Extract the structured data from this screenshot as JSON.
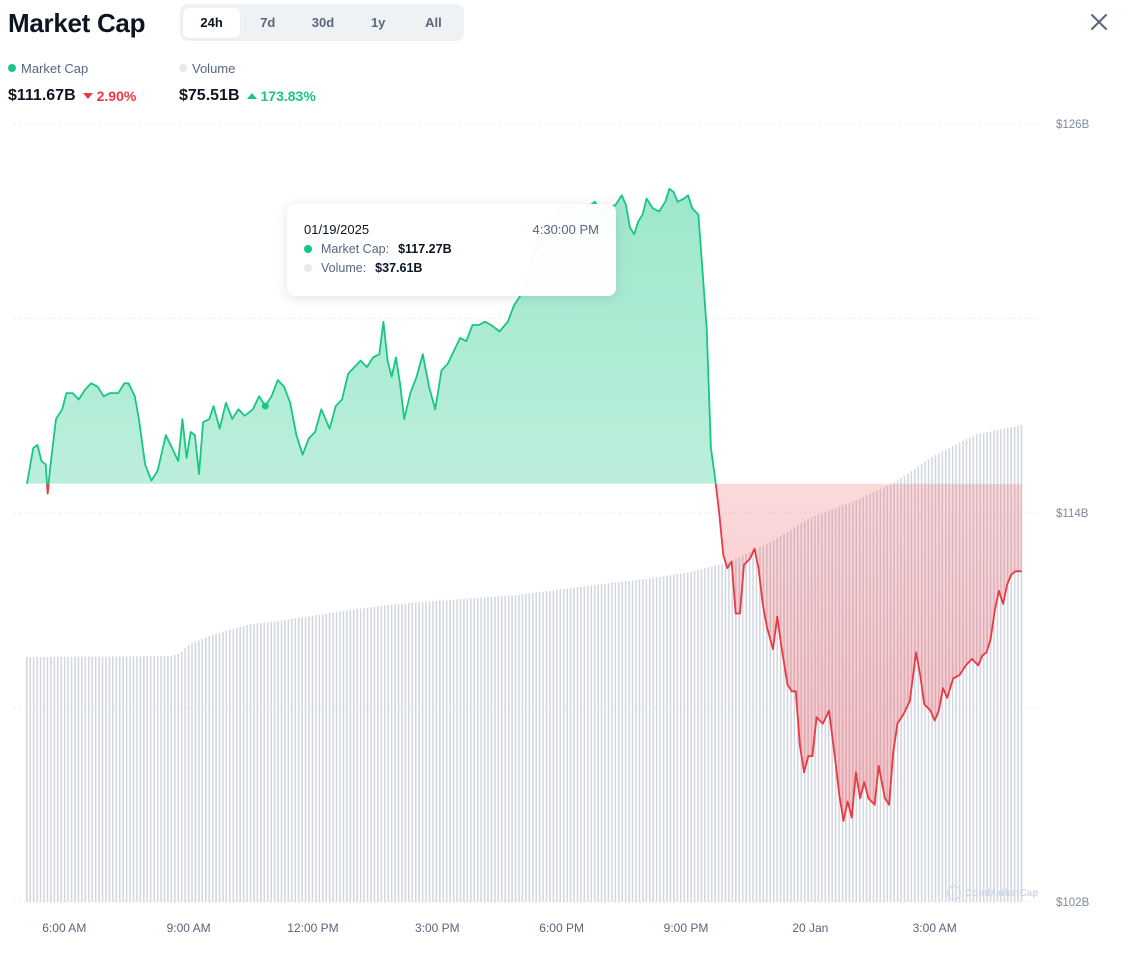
{
  "header": {
    "title": "Market Cap"
  },
  "tabs": [
    {
      "label": "24h",
      "active": true
    },
    {
      "label": "7d",
      "active": false
    },
    {
      "label": "30d",
      "active": false
    },
    {
      "label": "1y",
      "active": false
    },
    {
      "label": "All",
      "active": false
    }
  ],
  "legend": {
    "market_cap": {
      "label": "Market Cap",
      "value": "$111.67B",
      "change": "2.90%",
      "direction": "down",
      "color": "#16c784"
    },
    "volume": {
      "label": "Volume",
      "value": "$75.51B",
      "change": "173.83%",
      "direction": "up",
      "color": "#e6e9ee"
    }
  },
  "tooltip": {
    "date": "01/19/2025",
    "time": "4:30:00 PM",
    "market_cap_label": "Market Cap:",
    "market_cap_value": "$117.27B",
    "volume_label": "Volume:",
    "volume_value": "$37.61B"
  },
  "watermark": "CoinMarketCap",
  "colors": {
    "up": "#16c784",
    "down": "#ea3943",
    "volume": "#d3d8e0"
  },
  "chart_data": {
    "type": "area",
    "title": "Market Cap",
    "baseline": 114.9,
    "y_ticks": [
      {
        "value": 126,
        "label": "$126B"
      },
      {
        "value": 114,
        "label": "$114B"
      },
      {
        "value": 102,
        "label": "$102B"
      }
    ],
    "ylim": [
      102,
      126
    ],
    "x_ticks": [
      {
        "hour": 6,
        "label": "6:00 AM"
      },
      {
        "hour": 9,
        "label": "9:00 AM"
      },
      {
        "hour": 12,
        "label": "12:00 PM"
      },
      {
        "hour": 15,
        "label": "3:00 PM"
      },
      {
        "hour": 18,
        "label": "6:00 PM"
      },
      {
        "hour": 21,
        "label": "9:00 PM"
      },
      {
        "hour": 24,
        "label": "20 Jan"
      },
      {
        "hour": 27,
        "label": "3:00 AM"
      }
    ],
    "xlim": [
      5.1,
      29.3
    ],
    "series": [
      {
        "name": "Market Cap",
        "points": [
          [
            5.1,
            114.9
          ],
          [
            5.25,
            116.0
          ],
          [
            5.35,
            116.1
          ],
          [
            5.45,
            115.6
          ],
          [
            5.55,
            115.5
          ],
          [
            5.6,
            114.6
          ],
          [
            5.65,
            115.3
          ],
          [
            5.8,
            116.9
          ],
          [
            5.95,
            117.2
          ],
          [
            6.05,
            117.7
          ],
          [
            6.2,
            117.7
          ],
          [
            6.35,
            117.5
          ],
          [
            6.5,
            117.8
          ],
          [
            6.65,
            118.0
          ],
          [
            6.8,
            117.9
          ],
          [
            6.95,
            117.6
          ],
          [
            7.1,
            117.7
          ],
          [
            7.3,
            117.7
          ],
          [
            7.45,
            118.0
          ],
          [
            7.55,
            118.0
          ],
          [
            7.7,
            117.6
          ],
          [
            7.8,
            116.9
          ],
          [
            7.95,
            115.5
          ],
          [
            8.1,
            115.0
          ],
          [
            8.25,
            115.3
          ],
          [
            8.45,
            116.4
          ],
          [
            8.6,
            116.0
          ],
          [
            8.75,
            115.6
          ],
          [
            8.85,
            116.9
          ],
          [
            8.95,
            115.7
          ],
          [
            9.05,
            116.5
          ],
          [
            9.15,
            116.4
          ],
          [
            9.25,
            115.2
          ],
          [
            9.35,
            116.8
          ],
          [
            9.5,
            116.9
          ],
          [
            9.6,
            117.3
          ],
          [
            9.75,
            116.6
          ],
          [
            9.9,
            117.4
          ],
          [
            10.05,
            116.9
          ],
          [
            10.2,
            117.2
          ],
          [
            10.35,
            117.0
          ],
          [
            10.55,
            117.2
          ],
          [
            10.7,
            117.6
          ],
          [
            10.85,
            117.3
          ],
          [
            11.0,
            117.6
          ],
          [
            11.15,
            118.1
          ],
          [
            11.3,
            117.9
          ],
          [
            11.45,
            117.4
          ],
          [
            11.6,
            116.4
          ],
          [
            11.75,
            115.8
          ],
          [
            11.9,
            116.3
          ],
          [
            12.05,
            116.5
          ],
          [
            12.2,
            117.2
          ],
          [
            12.4,
            116.6
          ],
          [
            12.55,
            117.3
          ],
          [
            12.7,
            117.5
          ],
          [
            12.85,
            118.3
          ],
          [
            13.0,
            118.5
          ],
          [
            13.15,
            118.7
          ],
          [
            13.3,
            118.5
          ],
          [
            13.45,
            118.8
          ],
          [
            13.6,
            118.9
          ],
          [
            13.7,
            119.9
          ],
          [
            13.8,
            118.7
          ],
          [
            13.9,
            118.2
          ],
          [
            14.0,
            118.8
          ],
          [
            14.1,
            118.0
          ],
          [
            14.2,
            116.9
          ],
          [
            14.35,
            117.7
          ],
          [
            14.5,
            118.2
          ],
          [
            14.65,
            118.9
          ],
          [
            14.8,
            117.9
          ],
          [
            14.95,
            117.2
          ],
          [
            15.1,
            118.4
          ],
          [
            15.25,
            118.6
          ],
          [
            15.4,
            119.0
          ],
          [
            15.55,
            119.4
          ],
          [
            15.7,
            119.3
          ],
          [
            15.85,
            119.8
          ],
          [
            16.0,
            119.8
          ],
          [
            16.15,
            119.9
          ],
          [
            16.3,
            119.8
          ],
          [
            16.5,
            119.6
          ],
          [
            16.7,
            119.9
          ],
          [
            16.85,
            120.4
          ],
          [
            17.0,
            120.7
          ],
          [
            17.15,
            121.1
          ],
          [
            17.3,
            121.9
          ],
          [
            17.5,
            122.4
          ],
          [
            17.7,
            122.7
          ],
          [
            17.85,
            123.1
          ],
          [
            18.0,
            123.4
          ],
          [
            18.15,
            123.5
          ],
          [
            18.3,
            123.4
          ],
          [
            18.45,
            123.3
          ],
          [
            18.6,
            123.4
          ],
          [
            18.8,
            123.6
          ],
          [
            18.95,
            123.3
          ],
          [
            19.1,
            123.4
          ],
          [
            19.3,
            123.5
          ],
          [
            19.45,
            123.8
          ],
          [
            19.55,
            123.5
          ],
          [
            19.65,
            122.8
          ],
          [
            19.75,
            122.6
          ],
          [
            19.85,
            123.0
          ],
          [
            19.95,
            123.2
          ],
          [
            20.05,
            123.7
          ],
          [
            20.2,
            123.4
          ],
          [
            20.35,
            123.3
          ],
          [
            20.5,
            123.6
          ],
          [
            20.6,
            124.0
          ],
          [
            20.7,
            123.9
          ],
          [
            20.8,
            123.6
          ],
          [
            20.95,
            123.7
          ],
          [
            21.05,
            123.8
          ],
          [
            21.15,
            123.4
          ],
          [
            21.3,
            123.2
          ],
          [
            21.5,
            119.7
          ],
          [
            21.6,
            116.0
          ],
          [
            21.7,
            115.1
          ],
          [
            21.8,
            114.0
          ],
          [
            21.9,
            112.7
          ],
          [
            22.0,
            112.3
          ],
          [
            22.1,
            112.5
          ],
          [
            22.2,
            110.9
          ],
          [
            22.3,
            110.9
          ],
          [
            22.4,
            112.4
          ],
          [
            22.55,
            112.6
          ],
          [
            22.65,
            112.9
          ],
          [
            22.75,
            112.3
          ],
          [
            22.85,
            111.2
          ],
          [
            22.95,
            110.5
          ],
          [
            23.1,
            109.8
          ],
          [
            23.2,
            110.8
          ],
          [
            23.3,
            109.9
          ],
          [
            23.45,
            108.7
          ],
          [
            23.55,
            108.5
          ],
          [
            23.65,
            108.5
          ],
          [
            23.75,
            106.8
          ],
          [
            23.85,
            106.0
          ],
          [
            23.95,
            106.5
          ],
          [
            24.05,
            106.5
          ],
          [
            24.15,
            107.7
          ],
          [
            24.3,
            107.5
          ],
          [
            24.45,
            107.9
          ],
          [
            24.6,
            106.4
          ],
          [
            24.7,
            105.3
          ],
          [
            24.8,
            104.5
          ],
          [
            24.9,
            105.1
          ],
          [
            25.0,
            104.6
          ],
          [
            25.1,
            106.0
          ],
          [
            25.2,
            105.2
          ],
          [
            25.3,
            105.7
          ],
          [
            25.4,
            105.2
          ],
          [
            25.55,
            105.0
          ],
          [
            25.65,
            106.2
          ],
          [
            25.8,
            105.2
          ],
          [
            25.9,
            105.0
          ],
          [
            26.0,
            106.6
          ],
          [
            26.1,
            107.5
          ],
          [
            26.25,
            107.8
          ],
          [
            26.4,
            108.2
          ],
          [
            26.5,
            109.2
          ],
          [
            26.55,
            109.7
          ],
          [
            26.65,
            109.0
          ],
          [
            26.75,
            108.1
          ],
          [
            26.9,
            107.9
          ],
          [
            27.0,
            107.6
          ],
          [
            27.1,
            107.9
          ],
          [
            27.2,
            108.6
          ],
          [
            27.3,
            108.3
          ],
          [
            27.45,
            108.9
          ],
          [
            27.6,
            109.0
          ],
          [
            27.75,
            109.3
          ],
          [
            27.9,
            109.5
          ],
          [
            28.05,
            109.3
          ],
          [
            28.15,
            109.6
          ],
          [
            28.25,
            109.7
          ],
          [
            28.35,
            110.1
          ],
          [
            28.45,
            111.0
          ],
          [
            28.55,
            111.6
          ],
          [
            28.65,
            111.2
          ],
          [
            28.75,
            111.8
          ],
          [
            28.85,
            112.1
          ],
          [
            28.95,
            112.2
          ],
          [
            29.1,
            112.2
          ]
        ]
      },
      {
        "name": "Volume",
        "points": [
          [
            5.1,
            31.5
          ],
          [
            8.6,
            31.6
          ],
          [
            8.8,
            32.0
          ],
          [
            9.0,
            33.0
          ],
          [
            9.5,
            34.2
          ],
          [
            10.0,
            35.0
          ],
          [
            10.5,
            35.7
          ],
          [
            11.0,
            36.0
          ],
          [
            12.0,
            36.8
          ],
          [
            13.0,
            37.6
          ],
          [
            14.0,
            38.3
          ],
          [
            15.0,
            38.7
          ],
          [
            16.0,
            39.1
          ],
          [
            17.0,
            39.5
          ],
          [
            18.0,
            40.2
          ],
          [
            19.0,
            40.9
          ],
          [
            20.0,
            41.5
          ],
          [
            21.0,
            42.3
          ],
          [
            22.0,
            43.6
          ],
          [
            23.0,
            46.1
          ],
          [
            24.0,
            49.4
          ],
          [
            25.0,
            51.4
          ],
          [
            26.0,
            53.8
          ],
          [
            27.0,
            57.4
          ],
          [
            28.0,
            60.1
          ],
          [
            29.1,
            61.3
          ]
        ]
      }
    ],
    "volume_ylim": [
      0,
      100
    ]
  }
}
